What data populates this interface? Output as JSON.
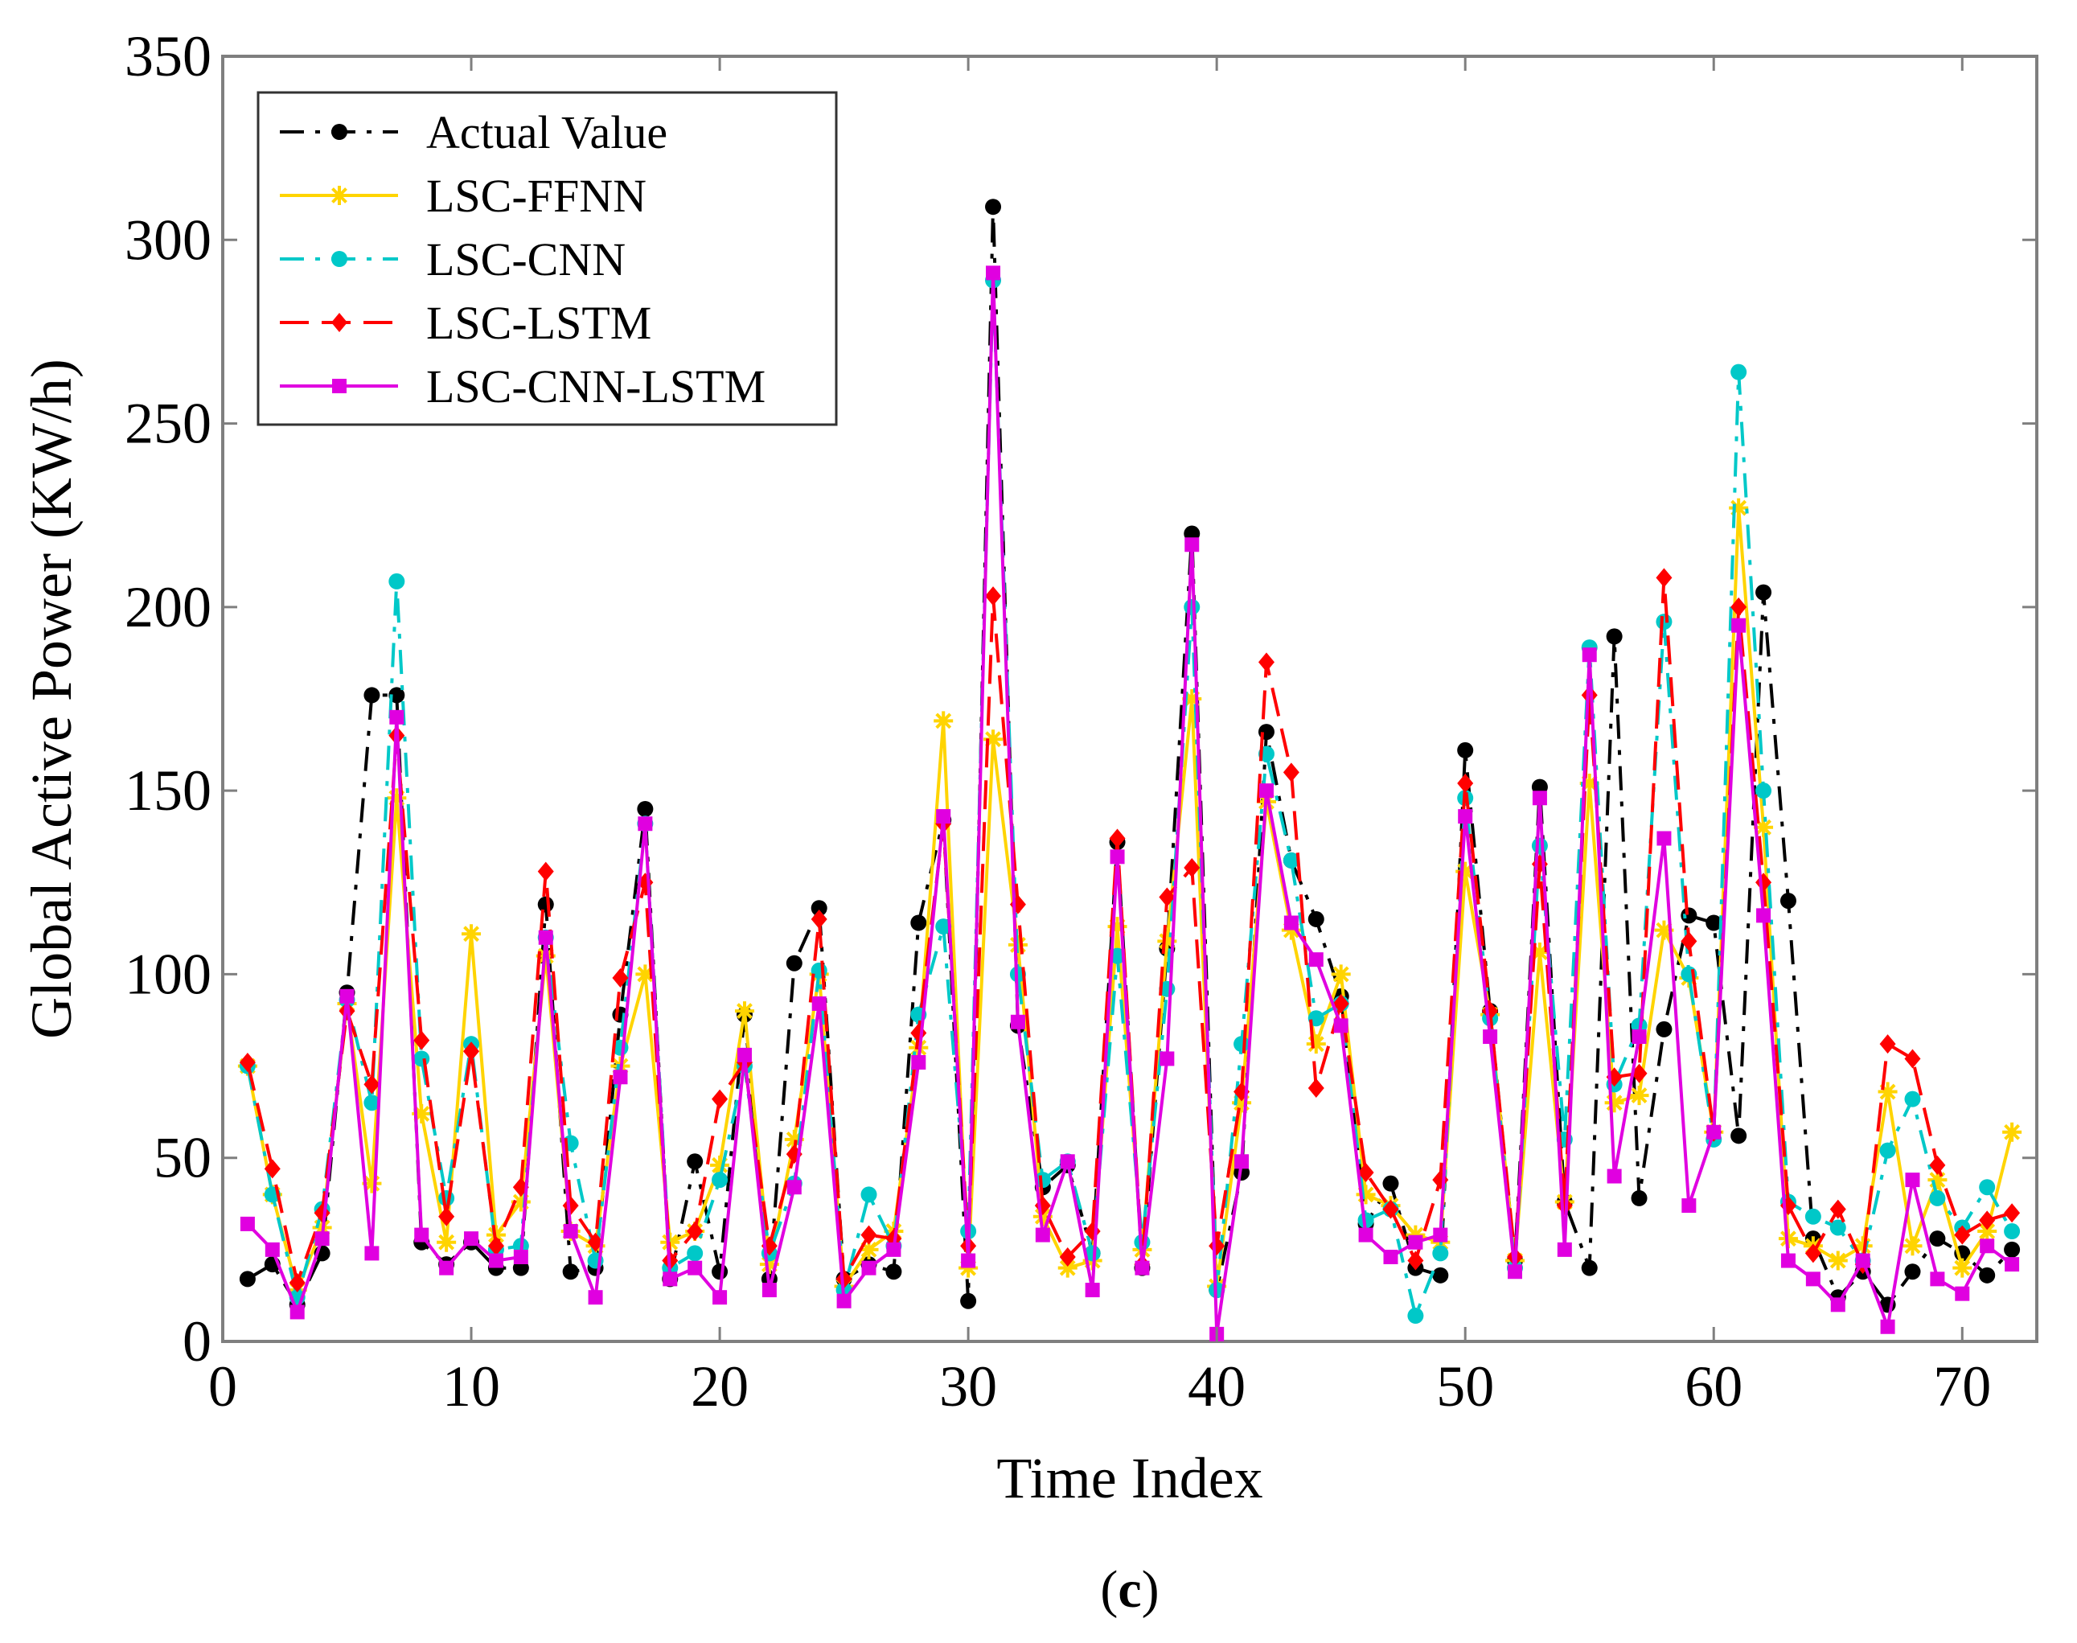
{
  "chart_data": {
    "type": "line",
    "title": "",
    "xlabel": "Time Index",
    "ylabel": "Global Active Power (KW/h)",
    "caption": {
      "open": "(",
      "letter": "c",
      "close": ")"
    },
    "xlim": [
      0,
      73
    ],
    "ylim": [
      0,
      350
    ],
    "xticks": [
      0,
      10,
      20,
      30,
      40,
      50,
      60,
      70
    ],
    "yticks": [
      0,
      50,
      100,
      150,
      200,
      250,
      300,
      350
    ],
    "legend_position": "top-left",
    "x": [
      1,
      2,
      3,
      4,
      5,
      6,
      7,
      8,
      9,
      10,
      11,
      12,
      13,
      14,
      15,
      16,
      17,
      18,
      19,
      20,
      21,
      22,
      23,
      24,
      25,
      26,
      27,
      28,
      29,
      30,
      31,
      32,
      33,
      34,
      35,
      36,
      37,
      38,
      39,
      40,
      41,
      42,
      43,
      44,
      45,
      46,
      47,
      48,
      49,
      50,
      51,
      52,
      53,
      54,
      55,
      56,
      57,
      58,
      59,
      60,
      61,
      62,
      63,
      64,
      65,
      66,
      67,
      68,
      69,
      70,
      71,
      72
    ],
    "series": [
      {
        "name": "Actual Value",
        "color": "#000000",
        "dash": "dashdot",
        "marker": "circle",
        "values": [
          17,
          21,
          10,
          24,
          95,
          176,
          176,
          27,
          21,
          27,
          20,
          20,
          119,
          19,
          20,
          89,
          145,
          17,
          49,
          19,
          89,
          17,
          103,
          118,
          17,
          21,
          19,
          114,
          142,
          11,
          309,
          86,
          42,
          48,
          24,
          136,
          20,
          107,
          220,
          14,
          46,
          166,
          131,
          115,
          94,
          32,
          43,
          20,
          18,
          161,
          90,
          22,
          151,
          38,
          20,
          192,
          39,
          85,
          116,
          114,
          56,
          204,
          120,
          28,
          12,
          19,
          10,
          19,
          28,
          24,
          18,
          25
        ]
      },
      {
        "name": "LSC-FFNN",
        "color": "#ffd400",
        "dash": "solid",
        "marker": "asterisk",
        "values": [
          75,
          40,
          14,
          31,
          92,
          43,
          148,
          62,
          27,
          111,
          29,
          38,
          105,
          30,
          26,
          75,
          100,
          27,
          30,
          48,
          90,
          21,
          55,
          100,
          15,
          25,
          30,
          80,
          169,
          20,
          164,
          108,
          34,
          20,
          22,
          113,
          25,
          109,
          175,
          15,
          65,
          147,
          112,
          81,
          100,
          40,
          37,
          29,
          27,
          128,
          89,
          22,
          106,
          38,
          152,
          65,
          67,
          112,
          99,
          57,
          227,
          140,
          28,
          26,
          22,
          26,
          68,
          26,
          44,
          20,
          30,
          57
        ]
      },
      {
        "name": "LSC-CNN",
        "color": "#00c8c8",
        "dash": "dashdot",
        "marker": "circle",
        "values": [
          75,
          40,
          12,
          36,
          93,
          65,
          207,
          77,
          39,
          81,
          25,
          26,
          110,
          54,
          22,
          80,
          141,
          20,
          24,
          44,
          75,
          24,
          43,
          101,
          14,
          40,
          26,
          89,
          113,
          30,
          289,
          100,
          44,
          49,
          24,
          105,
          27,
          96,
          200,
          14,
          81,
          160,
          131,
          88,
          92,
          33,
          36,
          7,
          24,
          148,
          88,
          20,
          135,
          55,
          189,
          70,
          86,
          196,
          100,
          55,
          264,
          150,
          38,
          34,
          31,
          22,
          52,
          66,
          39,
          31,
          42,
          30
        ]
      },
      {
        "name": "LSC-LSTM",
        "color": "#ff0000",
        "dash": "dashed",
        "marker": "diamond",
        "values": [
          76,
          47,
          16,
          35,
          90,
          70,
          165,
          82,
          34,
          79,
          26,
          42,
          128,
          37,
          27,
          99,
          125,
          22,
          30,
          66,
          76,
          26,
          51,
          115,
          17,
          29,
          28,
          84,
          141,
          26,
          203,
          119,
          37,
          23,
          30,
          137,
          21,
          121,
          129,
          26,
          68,
          185,
          155,
          69,
          92,
          46,
          36,
          22,
          44,
          152,
          90,
          23,
          130,
          37,
          176,
          72,
          73,
          208,
          109,
          57,
          200,
          125,
          37,
          24,
          36,
          21,
          81,
          77,
          48,
          29,
          33,
          35
        ]
      },
      {
        "name": "LSC-CNN-LSTM",
        "color": "#e000e0",
        "dash": "solid",
        "marker": "square",
        "values": [
          32,
          25,
          8,
          28,
          94,
          24,
          170,
          29,
          20,
          28,
          22,
          23,
          110,
          30,
          12,
          72,
          141,
          17,
          20,
          12,
          78,
          14,
          42,
          92,
          11,
          20,
          25,
          76,
          143,
          22,
          291,
          87,
          29,
          49,
          14,
          132,
          20,
          77,
          217,
          2,
          49,
          150,
          114,
          104,
          86,
          29,
          23,
          27,
          29,
          143,
          83,
          19,
          148,
          25,
          187,
          45,
          83,
          137,
          37,
          57,
          195,
          116,
          22,
          17,
          10,
          22,
          4,
          44,
          17,
          13,
          26,
          21
        ]
      }
    ]
  }
}
